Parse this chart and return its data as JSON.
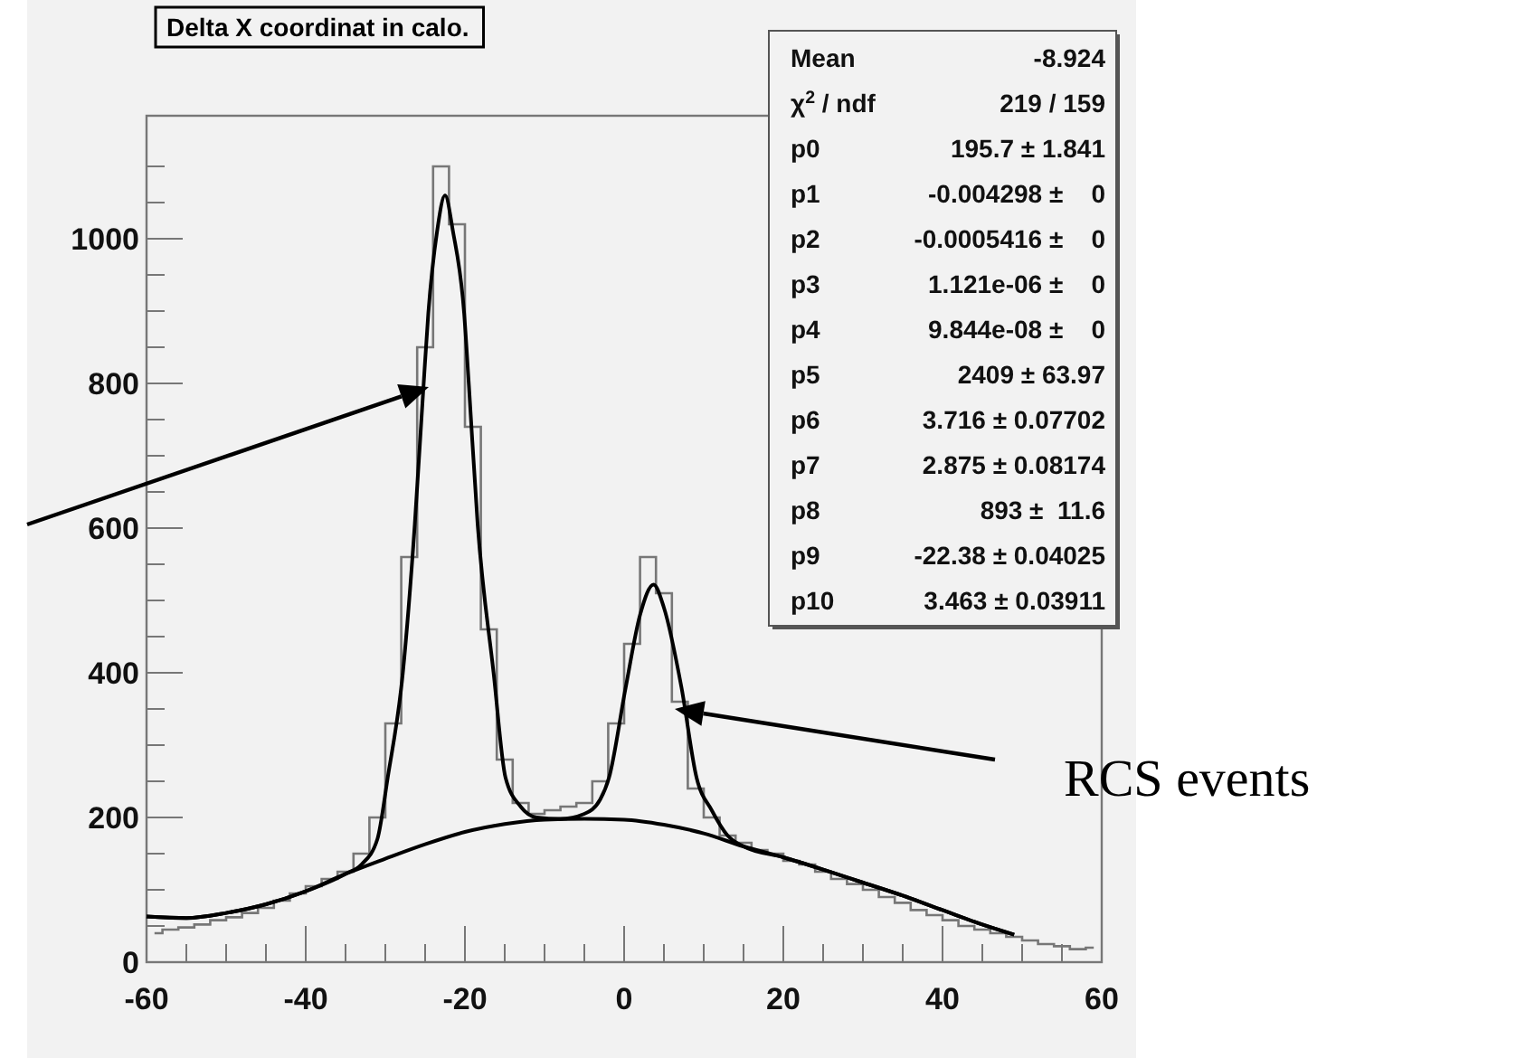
{
  "chart_data": {
    "type": "step",
    "title": "Delta X coordinat in calo.",
    "xlim": [
      -60,
      60
    ],
    "ylim": [
      0,
      1170
    ],
    "xticks": [
      -60,
      {
        "value": -55,
        "label": null
      },
      {
        "value": -50,
        "label": null
      },
      {
        "value": -45,
        "label": null
      },
      -40,
      {
        "value": -35,
        "label": null
      },
      {
        "value": -30,
        "label": null
      },
      {
        "value": -25,
        "label": null
      },
      -20,
      {
        "value": -15,
        "label": null
      },
      {
        "value": -10,
        "label": null
      },
      {
        "value": -5,
        "label": null
      },
      0,
      {
        "value": 5,
        "label": null
      },
      {
        "value": 10,
        "label": null
      },
      {
        "value": 15,
        "label": null
      },
      20,
      {
        "value": 25,
        "label": null
      },
      {
        "value": 30,
        "label": null
      },
      {
        "value": 35,
        "label": null
      },
      40,
      {
        "value": 45,
        "label": null
      },
      {
        "value": 50,
        "label": null
      },
      {
        "value": 55,
        "label": null
      },
      60
    ],
    "yticks": [
      0,
      {
        "value": 50,
        "label": null
      },
      {
        "value": 100,
        "label": null
      },
      {
        "value": 150,
        "label": null
      },
      200,
      {
        "value": 250,
        "label": null
      },
      {
        "value": 300,
        "label": null
      },
      {
        "value": 350,
        "label": null
      },
      400,
      {
        "value": 450,
        "label": null
      },
      {
        "value": 500,
        "label": null
      },
      {
        "value": 550,
        "label": null
      },
      600,
      {
        "value": 650,
        "label": null
      },
      {
        "value": 700,
        "label": null
      },
      {
        "value": 750,
        "label": null
      },
      800,
      {
        "value": 850,
        "label": null
      },
      {
        "value": 900,
        "label": null
      },
      {
        "value": 950,
        "label": null
      },
      1000,
      {
        "value": 1050,
        "label": null
      },
      {
        "value": 1100,
        "label": null
      }
    ],
    "series": [
      {
        "color": "#777777",
        "x": [
          -59,
          -57,
          -55,
          -53,
          -51,
          -49,
          -47,
          -45,
          -43,
          -41,
          -39,
          -37,
          -35,
          -33,
          -31,
          -29,
          -27,
          -25,
          -23,
          -21,
          -19,
          -17,
          -15,
          -13,
          -11,
          -9,
          -7,
          -5,
          -3,
          -1,
          1,
          3,
          5,
          7,
          9,
          11,
          13,
          15,
          17,
          19,
          21,
          23,
          25,
          27,
          29,
          31,
          33,
          35,
          37,
          39,
          41,
          43,
          45,
          47,
          49,
          51,
          53,
          55,
          57,
          59
        ],
        "values": [
          40,
          45,
          48,
          52,
          58,
          62,
          68,
          75,
          85,
          95,
          105,
          115,
          125,
          150,
          200,
          330,
          560,
          850,
          1100,
          1020,
          740,
          460,
          280,
          220,
          205,
          210,
          215,
          220,
          250,
          330,
          440,
          560,
          510,
          360,
          240,
          200,
          175,
          165,
          155,
          150,
          140,
          135,
          125,
          115,
          108,
          100,
          90,
          82,
          72,
          65,
          58,
          50,
          45,
          40,
          35,
          30,
          25,
          22,
          18,
          20
        ]
      },
      {
        "type": "line",
        "color": "#000000",
        "x": [
          -60,
          -55,
          -50,
          -45,
          -40,
          -35,
          -33,
          -31,
          -29.7,
          -27.8,
          -26.3,
          -25.2,
          -24.6,
          -23.5,
          -22.5,
          -21.5,
          -20.1,
          -19.5,
          -18.4,
          -16.4,
          -14.9,
          -13,
          -11,
          -8,
          -5,
          -3,
          -1.9,
          0.2,
          2,
          3.7,
          5,
          7.2,
          9.1,
          11,
          13,
          15,
          20,
          25,
          30,
          35,
          40,
          45,
          49
        ],
        "values": [
          63,
          61,
          68,
          80,
          98,
          122,
          135,
          170,
          255,
          400,
          605,
          797,
          897,
          1010,
          1060,
          1010,
          897,
          797,
          605,
          400,
          255,
          215,
          200,
          198,
          205,
          225,
          255,
          380,
          480,
          522,
          490,
          380,
          255,
          210,
          175,
          160,
          145,
          128,
          110,
          92,
          72,
          52,
          38
        ]
      },
      {
        "type": "line",
        "color": "#000000",
        "x": [
          -60,
          -55,
          -50,
          -45,
          -40,
          -35,
          -30,
          -25,
          -20,
          -15,
          -10,
          -5,
          0,
          5,
          10,
          15,
          20,
          25,
          30,
          35,
          40,
          45,
          49
        ],
        "values": [
          63,
          61,
          68,
          80,
          98,
          122,
          143,
          163,
          180,
          191,
          197,
          198,
          197,
          190,
          178,
          160,
          145,
          128,
          110,
          92,
          72,
          52,
          38
        ]
      }
    ],
    "annotations": [
      "Mean",
      "-8.924",
      "χ$^{2}$ / ndf",
      "219 / 159",
      "p0",
      "195.7 ± 1.841",
      "p1",
      "-0.004298 ±    0",
      "p2",
      "-0.0005416 ±    0",
      "p3",
      "1.121e-06 ±    0",
      "p4",
      "9.844e-08 ±    0",
      "p5",
      "2409 ± 63.97",
      "p6",
      "3.716 ± 0.07702",
      "p7",
      "2.875 ± 0.08174",
      "p8",
      "893 ±  11.6",
      "p9",
      "-22.38 ± 0.04025",
      "p10",
      "3.463 ± 0.03911",
      "RCS events"
    ]
  }
}
